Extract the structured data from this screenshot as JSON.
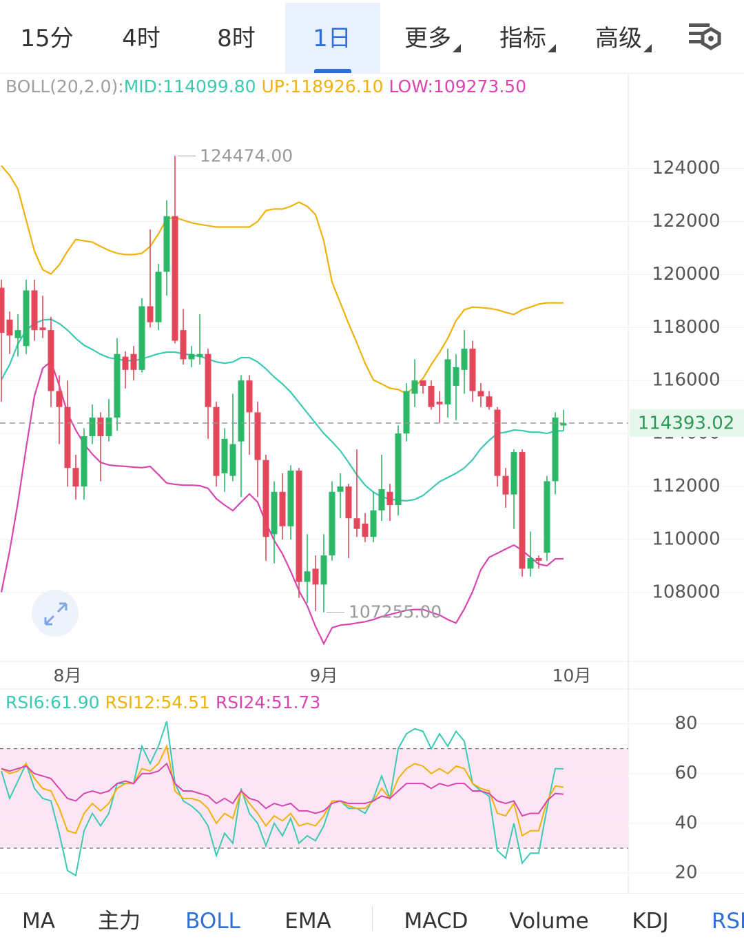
{
  "tabs": {
    "items": [
      "15分",
      "4时",
      "8时",
      "1日",
      "更多",
      "指标",
      "高级"
    ],
    "active": 3
  },
  "indicator_tabs": {
    "items": [
      "MA",
      "主力",
      "BOLL",
      "EMA",
      "MACD",
      "Volume",
      "KDJ",
      "RSI"
    ],
    "active": [
      2,
      7
    ]
  },
  "chart_data": [
    {
      "type": "candlestick",
      "title": "BOLL(20,2.0):",
      "categories": [
        null,
        null,
        null,
        null,
        null,
        null,
        null,
        null,
        "8月",
        null,
        null,
        null,
        null,
        null,
        null,
        null,
        null,
        null,
        null,
        null,
        null,
        null,
        null,
        null,
        null,
        null,
        null,
        null,
        null,
        null,
        null,
        null,
        null,
        null,
        null,
        null,
        null,
        null,
        null,
        "9月",
        null,
        null,
        null,
        null,
        null,
        null,
        null,
        null,
        null,
        null,
        null,
        null,
        null,
        null,
        null,
        null,
        null,
        null,
        null,
        null,
        null,
        null,
        null,
        null,
        null,
        null,
        null,
        null,
        null,
        "10月"
      ],
      "open": [
        119500,
        118300,
        117600,
        117300,
        119400,
        118000,
        117900,
        115600,
        115000,
        112700,
        112000,
        113900,
        114600,
        113900,
        114600,
        116900,
        117000,
        116400,
        118800,
        118200,
        120100,
        122200,
        117900,
        116800,
        116900,
        117000,
        115000,
        112500,
        112400,
        113700,
        116000,
        114800,
        113000,
        110200,
        111800,
        110500,
        112600,
        108400,
        108900,
        108300,
        109400,
        111800,
        112000,
        110800,
        110600,
        110100,
        111100,
        111800,
        111300,
        114000,
        115500,
        116000,
        115800,
        115200,
        115100,
        115800,
        116400,
        117200,
        115600,
        115400,
        114900,
        112400,
        111700,
        113300,
        108900,
        109300,
        109500,
        112200,
        114300,
        null
      ],
      "high": [
        119800,
        118600,
        118500,
        119800,
        119800,
        119200,
        118400,
        116200,
        116000,
        113200,
        114200,
        115100,
        114800,
        115300,
        117600,
        117100,
        117300,
        119100,
        121700,
        120400,
        122800,
        124474,
        118700,
        117300,
        118500,
        117200,
        115200,
        114200,
        115500,
        116200,
        116200,
        115200,
        113200,
        112200,
        112500,
        112800,
        112700,
        110200,
        109400,
        110200,
        112200,
        112500,
        112100,
        113400,
        111000,
        111800,
        113200,
        112100,
        114300,
        115900,
        116800,
        116000,
        116000,
        115600,
        117200,
        117000,
        117900,
        117500,
        115900,
        115600,
        115000,
        112700,
        113400,
        113400,
        110300,
        109400,
        112400,
        114800,
        114900,
        null
      ],
      "low": [
        115200,
        117000,
        116900,
        117000,
        117500,
        117600,
        115000,
        113600,
        112000,
        111500,
        111500,
        113600,
        112200,
        113700,
        114100,
        115700,
        116000,
        116300,
        118000,
        117900,
        119200,
        117400,
        116600,
        116500,
        116600,
        113800,
        112000,
        111800,
        112200,
        111600,
        113200,
        111600,
        109200,
        109100,
        110000,
        110000,
        107800,
        107600,
        107300,
        107255,
        109200,
        110800,
        109300,
        110100,
        109900,
        109900,
        110700,
        110700,
        110900,
        113700,
        115000,
        115500,
        114900,
        114400,
        114600,
        114500,
        115500,
        115200,
        115000,
        114900,
        112000,
        111200,
        110400,
        108600,
        108600,
        108900,
        109200,
        111700,
        114100,
        null
      ],
      "close": [
        117800,
        117700,
        117900,
        119400,
        117900,
        117900,
        115600,
        115000,
        112700,
        112000,
        113900,
        114600,
        113900,
        114600,
        117000,
        116400,
        116400,
        118800,
        118200,
        120100,
        122200,
        117500,
        116800,
        117000,
        117000,
        115000,
        112400,
        113800,
        113600,
        116000,
        114800,
        113000,
        110100,
        111800,
        110500,
        112600,
        108400,
        108800,
        108300,
        109400,
        111800,
        112000,
        110800,
        110400,
        110100,
        111100,
        111900,
        111300,
        114000,
        115600,
        116000,
        115800,
        115000,
        115100,
        116800,
        116500,
        117200,
        115600,
        115400,
        115000,
        112400,
        111700,
        113300,
        108900,
        109300,
        109200,
        112200,
        114600,
        114393.02,
        null
      ],
      "up_color": "#2bb868",
      "down_color": "#e4475b",
      "series": [
        {
          "name": "MID:114099.80",
          "color": "#3cc9b2",
          "values": [
            116030,
            116600,
            117380,
            117900,
            118150,
            118280,
            118310,
            118150,
            117900,
            117590,
            117330,
            117170,
            116990,
            116860,
            116810,
            116750,
            116750,
            116810,
            116910,
            117010,
            117070,
            117070,
            117010,
            116960,
            116910,
            116810,
            116700,
            116650,
            116700,
            116860,
            116860,
            116700,
            116440,
            116130,
            115870,
            115560,
            115170,
            114780,
            114390,
            114000,
            113690,
            113350,
            112910,
            112440,
            112050,
            111790,
            111610,
            111530,
            111480,
            111460,
            111510,
            111660,
            111920,
            112180,
            112340,
            112500,
            112700,
            113010,
            113430,
            113740,
            114000,
            114050,
            114130,
            114110,
            114050,
            114050,
            114000,
            114100,
            114099.8,
            null
          ]
        },
        {
          "name": "UP:118926.10",
          "color": "#efb20c",
          "values": [
            124100,
            123740,
            123220,
            122050,
            120880,
            120180,
            120020,
            120360,
            120880,
            121320,
            121270,
            121220,
            121060,
            120910,
            120800,
            120750,
            120750,
            120800,
            121060,
            121530,
            122100,
            122150,
            122050,
            121950,
            121890,
            121840,
            121790,
            121790,
            121790,
            121790,
            121790,
            122000,
            122410,
            122470,
            122470,
            122570,
            122730,
            122570,
            122260,
            121270,
            119710,
            118930,
            118150,
            117420,
            116650,
            116020,
            115870,
            115710,
            115660,
            115500,
            115760,
            116080,
            116600,
            117060,
            117590,
            118260,
            118670,
            118770,
            118750,
            118720,
            118670,
            118570,
            118490,
            118670,
            118770,
            118880,
            118930,
            118930,
            118926.1,
            null
          ]
        },
        {
          "name": "LOW:109273.50",
          "color": "#d845b0",
          "values": [
            108010,
            109570,
            111390,
            113470,
            115420,
            116460,
            116720,
            115810,
            114770,
            114130,
            113610,
            113220,
            112910,
            112810,
            112780,
            112760,
            112730,
            112710,
            112760,
            112450,
            112130,
            112080,
            112050,
            112050,
            112030,
            111930,
            111540,
            111300,
            111090,
            111410,
            111720,
            111410,
            110630,
            109970,
            109460,
            108800,
            108070,
            107500,
            106720,
            106070,
            106670,
            106770,
            106800,
            106850,
            106900,
            106980,
            107090,
            107170,
            107250,
            107330,
            107360,
            107360,
            107250,
            107150,
            106980,
            106850,
            107380,
            108030,
            108860,
            109330,
            109480,
            109640,
            109790,
            109590,
            109330,
            109070,
            109010,
            109270,
            109273.5,
            null
          ]
        }
      ],
      "ylim": [
        105400,
        127600
      ],
      "yticks": [
        108000,
        110000,
        112000,
        114000,
        116000,
        118000,
        120000,
        122000,
        124000
      ],
      "grid": true,
      "last_price": {
        "value": 114393.02,
        "label": "114393.02"
      },
      "annotations": [
        {
          "index": 21,
          "value": 124474,
          "label": "124474.00"
        },
        {
          "index": 39,
          "value": 107255,
          "label": "107255.00"
        }
      ]
    },
    {
      "type": "line",
      "series": [
        {
          "name": "RSI6:61.90",
          "color": "#3cc9b2",
          "values": [
            61,
            50,
            57,
            64,
            54,
            50,
            49,
            36,
            21,
            19,
            37,
            44,
            39,
            44,
            56,
            56,
            56,
            71,
            64,
            71,
            81,
            56,
            49,
            47,
            44,
            39,
            27,
            36,
            32,
            54,
            44,
            40,
            31,
            40,
            35,
            42,
            32,
            35,
            33,
            39,
            49,
            49,
            46,
            46,
            44,
            50,
            59,
            50,
            70,
            76,
            78,
            77,
            70,
            76,
            71,
            77,
            73,
            56,
            53,
            51,
            29,
            26,
            40,
            24,
            28,
            28,
            46,
            62,
            61.9,
            null
          ]
        },
        {
          "name": "RSI12:54.51",
          "color": "#efb20c",
          "values": [
            62,
            60,
            61,
            64,
            58,
            54,
            53,
            46,
            37,
            36,
            44,
            48,
            45,
            48,
            54,
            56,
            56,
            62,
            61,
            64,
            71,
            53,
            50,
            50,
            49,
            46,
            40,
            44,
            42,
            53,
            48,
            44,
            39,
            43,
            41,
            44,
            39,
            40,
            39,
            43,
            49,
            49,
            47,
            46,
            46,
            49,
            54,
            50,
            58,
            62,
            64,
            63,
            60,
            62,
            60,
            63,
            62,
            56,
            54,
            53,
            44,
            43,
            48,
            35,
            37,
            37,
            49,
            55,
            54.51,
            null
          ]
        },
        {
          "name": "RSI24:51.73",
          "color": "#d845b0",
          "values": [
            62,
            61,
            62,
            63,
            60,
            59,
            58,
            54,
            50,
            49,
            52,
            53,
            52,
            53,
            56,
            57,
            56,
            60,
            60,
            61,
            64,
            56,
            53,
            53,
            52,
            51,
            48,
            50,
            48,
            53,
            50,
            49,
            46,
            48,
            47,
            48,
            45,
            45,
            44,
            45,
            48,
            49,
            48,
            48,
            48,
            49,
            51,
            50,
            53,
            56,
            56,
            56,
            54,
            56,
            55,
            56,
            56,
            53,
            53,
            52,
            49,
            48,
            49,
            43,
            44,
            44,
            49,
            52,
            51.73,
            null
          ]
        }
      ],
      "ylim": [
        12,
        94
      ],
      "yticks": [
        20,
        40,
        60,
        80
      ],
      "grid": true,
      "bands": [
        30,
        70
      ],
      "band_color": "#fce6f4"
    }
  ]
}
